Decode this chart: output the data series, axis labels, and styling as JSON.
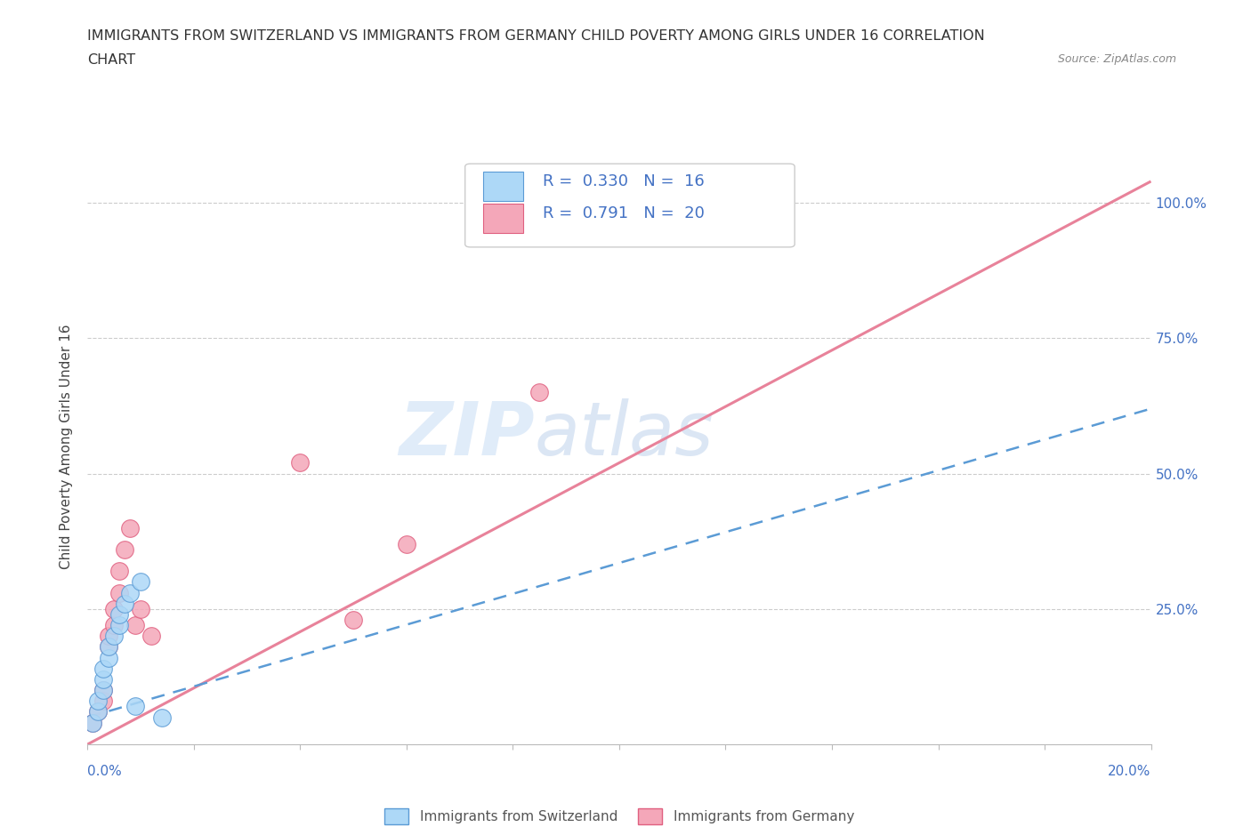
{
  "title_line1": "IMMIGRANTS FROM SWITZERLAND VS IMMIGRANTS FROM GERMANY CHILD POVERTY AMONG GIRLS UNDER 16 CORRELATION",
  "title_line2": "CHART",
  "source": "Source: ZipAtlas.com",
  "ylabel": "Child Poverty Among Girls Under 16",
  "xlim": [
    0.0,
    0.2
  ],
  "ylim": [
    0.0,
    1.1
  ],
  "ytick_positions": [
    0.0,
    0.25,
    0.5,
    0.75,
    1.0
  ],
  "ytick_labels": [
    "",
    "25.0%",
    "50.0%",
    "75.0%",
    "100.0%"
  ],
  "grid_color": "#cccccc",
  "background_color": "#ffffff",
  "watermark_zip": "ZIP",
  "watermark_atlas": "atlas",
  "swiss_color": "#add8f7",
  "swiss_border": "#5b9bd5",
  "germany_color": "#f4a7b9",
  "germany_border": "#e06080",
  "r_swiss": 0.33,
  "n_swiss": 16,
  "r_germany": 0.791,
  "n_germany": 20,
  "legend_color": "#4472c4",
  "axis_label_color": "#4472c4",
  "swiss_scatter_x": [
    0.001,
    0.002,
    0.002,
    0.003,
    0.003,
    0.003,
    0.004,
    0.004,
    0.005,
    0.006,
    0.006,
    0.007,
    0.008,
    0.009,
    0.01,
    0.014
  ],
  "swiss_scatter_y": [
    0.04,
    0.06,
    0.08,
    0.1,
    0.12,
    0.14,
    0.16,
    0.18,
    0.2,
    0.22,
    0.24,
    0.26,
    0.28,
    0.07,
    0.3,
    0.05
  ],
  "germany_scatter_x": [
    0.001,
    0.002,
    0.003,
    0.003,
    0.004,
    0.004,
    0.005,
    0.005,
    0.006,
    0.006,
    0.007,
    0.008,
    0.009,
    0.01,
    0.012,
    0.04,
    0.05,
    0.06,
    0.085,
    0.12
  ],
  "germany_scatter_y": [
    0.04,
    0.06,
    0.08,
    0.1,
    0.18,
    0.2,
    0.22,
    0.25,
    0.28,
    0.32,
    0.36,
    0.4,
    0.22,
    0.25,
    0.2,
    0.52,
    0.23,
    0.37,
    0.65,
    1.0
  ],
  "swiss_trend_x": [
    0.0,
    0.2
  ],
  "swiss_trend_y": [
    0.05,
    0.62
  ],
  "germany_trend_x": [
    0.0,
    0.2
  ],
  "germany_trend_y": [
    0.0,
    1.04
  ]
}
